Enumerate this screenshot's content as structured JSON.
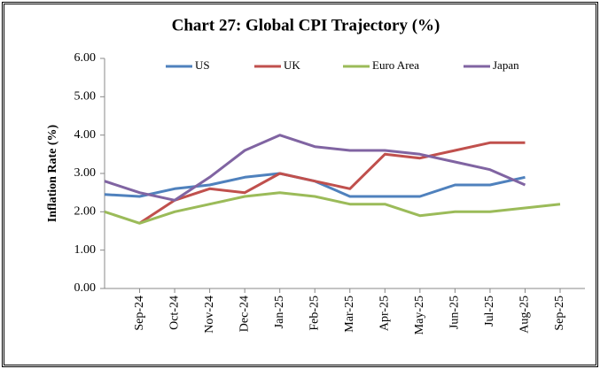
{
  "chart_data": {
    "type": "line",
    "title": "Chart 27: Global CPI Trajectory (%)",
    "y_label": "Inflation Rate (%)",
    "categories": [
      null,
      "Sep-24",
      "Oct-24",
      "Nov-24",
      "Dec-24",
      "Jan-25",
      "Feb-25",
      "Mar-25",
      "Apr-25",
      "May-25",
      "Jun-25",
      "Jul-25",
      "Aug-25",
      "Sep-25"
    ],
    "series": [
      {
        "name": "US",
        "color": "#4f81bd",
        "values": [
          2.45,
          2.4,
          2.6,
          2.7,
          2.9,
          3.0,
          2.8,
          2.4,
          2.4,
          2.4,
          2.7,
          2.7,
          2.9,
          null
        ]
      },
      {
        "name": "UK",
        "color": "#c0504d",
        "values": [
          null,
          1.7,
          2.3,
          2.6,
          2.5,
          3.0,
          2.8,
          2.6,
          3.5,
          3.4,
          3.6,
          3.8,
          3.8,
          null
        ]
      },
      {
        "name": "Euro Area",
        "color": "#9bbb59",
        "values": [
          2.0,
          1.7,
          2.0,
          2.2,
          2.4,
          2.5,
          2.4,
          2.2,
          2.2,
          1.9,
          2.0,
          2.0,
          2.1,
          2.2
        ]
      },
      {
        "name": "Japan",
        "color": "#8064a2",
        "values": [
          2.8,
          2.5,
          2.3,
          2.9,
          3.6,
          4.0,
          3.7,
          3.6,
          3.6,
          3.5,
          3.3,
          3.1,
          2.7,
          null
        ]
      }
    ],
    "ylim": [
      0,
      6
    ],
    "yticks": [
      {
        "value": 0,
        "label": "0.00"
      },
      {
        "value": 1,
        "label": "1.00"
      },
      {
        "value": 2,
        "label": "2.00"
      },
      {
        "value": 3,
        "label": "3.00"
      },
      {
        "value": 4,
        "label": "4.00"
      },
      {
        "value": 5,
        "label": "5.00"
      },
      {
        "value": 6,
        "label": "6.00"
      }
    ],
    "legend": "top",
    "grid": false
  }
}
